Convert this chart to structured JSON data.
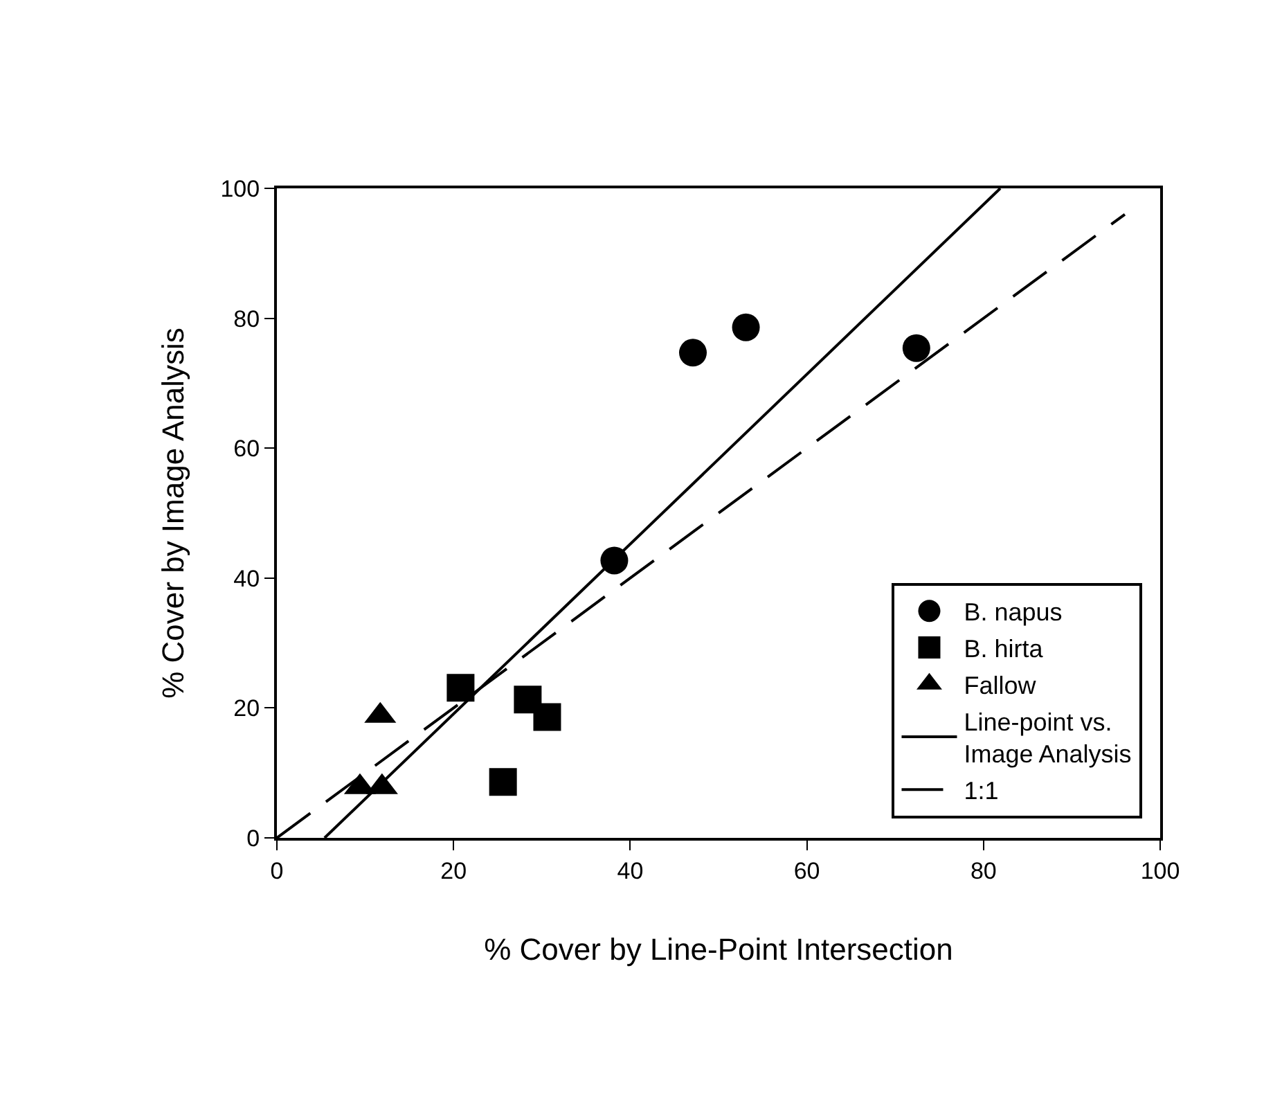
{
  "chart_data": {
    "type": "scatter",
    "xlabel": "% Cover by Line-Point Intersection",
    "ylabel": "% Cover by Image Analysis",
    "xlim": [
      0,
      100
    ],
    "xticks": [
      0,
      20,
      40,
      60,
      80,
      100
    ],
    "ylim": [
      0,
      100
    ],
    "yticks": [
      0,
      20,
      40,
      60,
      80,
      100
    ],
    "grid": false,
    "legend": "bottom right",
    "series": [
      {
        "name": "B. napus",
        "color": "#000000",
        "marker": "circle",
        "x": [
          38.2,
          47.1,
          53.1,
          72.4
        ],
        "values": [
          42.7,
          74.7,
          78.6,
          75.4
        ]
      },
      {
        "name": "B. hirta",
        "color": "#000000",
        "marker": "square",
        "x": [
          20.8,
          25.6,
          28.4,
          30.6
        ],
        "values": [
          23.1,
          8.6,
          21.3,
          18.6
        ]
      },
      {
        "name": "Fallow",
        "color": "#000000",
        "marker": "triangle",
        "x": [
          9.4,
          11.7,
          11.9
        ],
        "values": [
          7.8,
          18.8,
          7.8
        ]
      },
      {
        "name": "Line-point vs.\nImage Analysis",
        "type": "line",
        "color": "#000000",
        "line_style": "solid",
        "marker": "none",
        "x": [
          5.4,
          81.9
        ],
        "values": [
          0,
          100
        ]
      },
      {
        "name": "1:1",
        "type": "line",
        "color": "#000000",
        "line_style": "dashed",
        "marker": "none",
        "x": [
          0,
          96
        ],
        "values": [
          0,
          96
        ]
      }
    ]
  }
}
